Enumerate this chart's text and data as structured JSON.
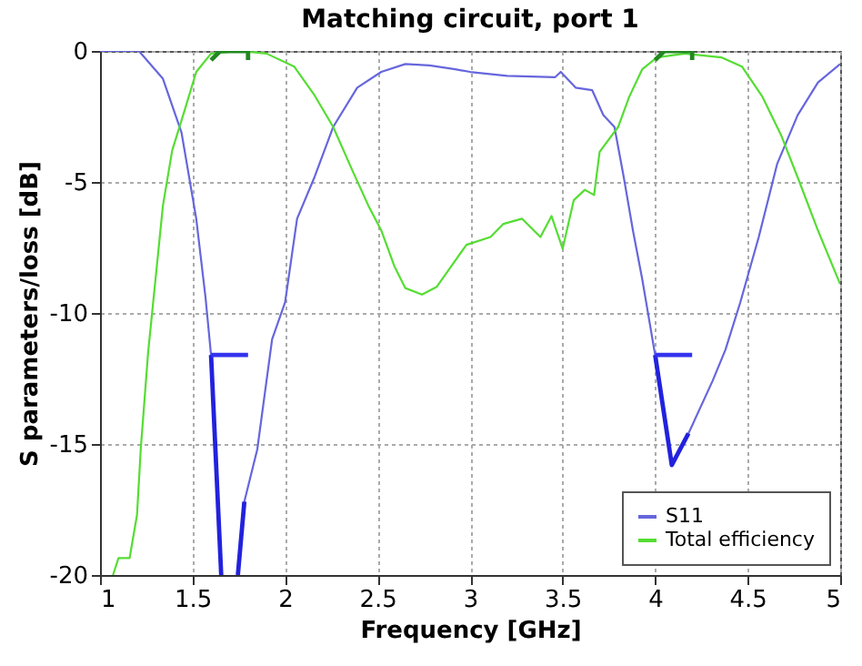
{
  "chart_data": {
    "type": "line",
    "title": "Matching circuit, port 1",
    "xlabel": "Frequency [GHz]",
    "ylabel": "S parameters/loss [dB]",
    "xlim": [
      1,
      5
    ],
    "xticks": [
      1,
      1.5,
      2,
      2.5,
      3,
      3.5,
      4,
      4.5,
      5
    ],
    "ylim": [
      -20,
      0
    ],
    "yticks": [
      -20,
      -15,
      -10,
      -5,
      0
    ],
    "grid": true,
    "legend": "bottom right",
    "series": [
      {
        "name": "S11",
        "color": "#6666dd",
        "x": [
          1.0,
          1.21,
          1.34,
          1.44,
          1.52,
          1.57,
          1.6,
          1.655,
          1.7,
          1.745,
          1.78,
          1.85,
          1.93,
          2.0,
          2.065,
          2.16,
          2.26,
          2.39,
          2.52,
          2.65,
          2.78,
          2.92,
          3.0,
          3.2,
          3.46,
          3.49,
          3.57,
          3.66,
          3.72,
          3.78,
          3.83,
          3.88,
          3.93,
          4.0,
          4.09,
          4.18,
          4.31,
          4.38,
          4.46,
          4.56,
          4.66,
          4.77,
          4.88,
          5.0
        ],
        "values": [
          0,
          0,
          -1.06,
          -3.1,
          -6.4,
          -9.4,
          -11.6,
          -20,
          null,
          -20,
          -17.2,
          -15.2,
          -11.0,
          -9.6,
          -6.4,
          -4.8,
          -2.9,
          -1.4,
          -0.8,
          -0.5,
          -0.55,
          -0.7,
          -0.8,
          -0.95,
          -1.0,
          -0.8,
          -1.4,
          -1.5,
          -2.45,
          -2.9,
          -4.8,
          -6.85,
          -8.7,
          -11.6,
          -15.8,
          -14.6,
          -12.6,
          -11.4,
          -9.6,
          -7.1,
          -4.3,
          -2.45,
          -1.2,
          -0.5
        ]
      },
      {
        "name": "Total efficiency",
        "color": "#55dd33",
        "x": [
          1.07,
          1.1,
          1.16,
          1.2,
          1.22,
          1.26,
          1.3,
          1.34,
          1.39,
          1.46,
          1.52,
          1.6,
          1.75,
          1.9,
          2.05,
          2.16,
          2.26,
          2.36,
          2.45,
          2.52,
          2.59,
          2.65,
          2.74,
          2.82,
          2.88,
          2.98,
          3.11,
          3.18,
          3.28,
          3.38,
          3.44,
          3.5,
          3.56,
          3.62,
          3.67,
          3.7,
          3.8,
          3.86,
          3.93,
          4.01,
          4.16,
          4.36,
          4.47,
          4.58,
          4.68,
          4.78,
          4.88,
          5.0
        ],
        "values": [
          -20,
          -19.35,
          -19.35,
          -17.7,
          -15.2,
          -11.5,
          -8.7,
          -5.9,
          -3.8,
          -2.2,
          -0.8,
          -0.1,
          0,
          -0.1,
          -0.6,
          -1.7,
          -2.9,
          -4.5,
          -5.9,
          -6.85,
          -8.2,
          -9.05,
          -9.3,
          -9.0,
          -8.4,
          -7.4,
          -7.1,
          -6.6,
          -6.4,
          -7.1,
          -6.3,
          -7.55,
          -5.7,
          -5.3,
          -5.5,
          -3.85,
          -2.9,
          -1.75,
          -0.7,
          -0.25,
          -0.1,
          -0.25,
          -0.6,
          -1.75,
          -3.2,
          -5.0,
          -6.85,
          -8.9
        ]
      },
      {
        "color": "#2222dd",
        "x": [
          1.6,
          1.655
        ],
        "values": [
          -11.6,
          -20
        ]
      },
      {
        "color": "#2222dd",
        "x": [
          1.745,
          1.78
        ],
        "values": [
          -20,
          -17.2
        ]
      },
      {
        "color": "#2222dd",
        "x": [
          4.0,
          4.09,
          4.18
        ],
        "values": [
          -11.6,
          -15.8,
          -14.6
        ]
      },
      {
        "color": "#3333ee",
        "x": [
          1.6,
          1.8
        ],
        "values": [
          -11.6,
          -11.6
        ]
      },
      {
        "color": "#3333ee",
        "x": [
          4.0,
          4.2
        ],
        "values": [
          -11.6,
          -11.6
        ]
      },
      {
        "color": "#228822",
        "x": [
          1.6,
          1.65,
          1.8,
          1.8,
          1.6
        ],
        "values": [
          -0.35,
          0,
          0,
          -0.35,
          -0.35
        ]
      },
      {
        "color": "#228822",
        "x": [
          4.0,
          4.05,
          4.2,
          4.2,
          4.0
        ],
        "values": [
          -0.35,
          0,
          0,
          -0.35,
          -0.35
        ]
      }
    ]
  }
}
